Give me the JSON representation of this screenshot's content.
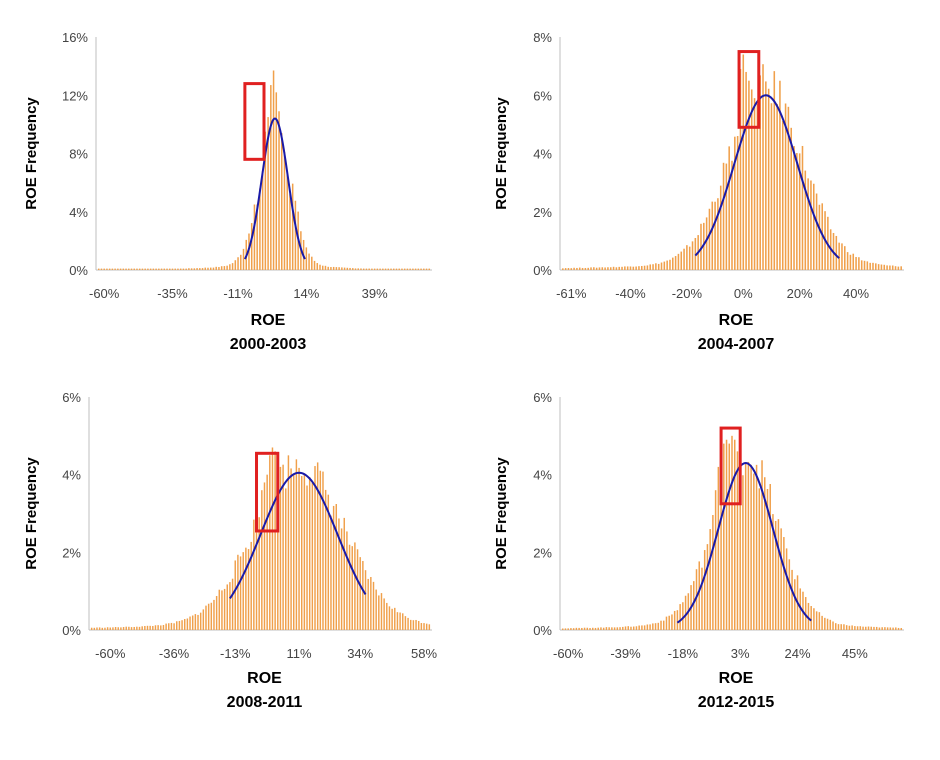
{
  "chart_data": [
    {
      "type": "bar",
      "title": "2000-2003",
      "xlabel": "ROE",
      "ylabel": "ROE Frequency",
      "y_ticks": [
        "0%",
        "4%",
        "8%",
        "12%",
        "16%"
      ],
      "ylim": [
        0,
        16
      ],
      "x_tick_labels": [
        "-60%",
        "-35%",
        "-11%",
        "14%",
        "39%"
      ],
      "x_tick_values": [
        -60,
        -35,
        -11,
        14,
        39
      ],
      "xlim": [
        -63,
        60
      ],
      "bin_width": 1,
      "peak_bins": [
        {
          "x": -4,
          "y": 4.5
        },
        {
          "x": -3,
          "y": 5.6
        },
        {
          "x": -2,
          "y": 6.8
        },
        {
          "x": -1,
          "y": 9.5
        },
        {
          "x": 0,
          "y": 10.5
        },
        {
          "x": 1,
          "y": 12.7
        },
        {
          "x": 2,
          "y": 13.7
        },
        {
          "x": 3,
          "y": 12.2
        },
        {
          "x": 4,
          "y": 10.9
        },
        {
          "x": 5,
          "y": 9.4
        },
        {
          "x": 6,
          "y": 8.1
        },
        {
          "x": 7,
          "y": 6.6
        },
        {
          "x": 8,
          "y": 5.2
        }
      ],
      "bar_color": "#f0a04b",
      "normal_fit": {
        "mean": 2.5,
        "sd": 4.8,
        "peak": 10.4,
        "x_range": [
          -8.5,
          13.5
        ],
        "color": "#1a1aa8"
      },
      "highlight_box": {
        "x_range": [
          -8.5,
          -1.5
        ],
        "y_range": [
          7.6,
          12.8
        ],
        "color": "#e02020"
      }
    },
    {
      "type": "bar",
      "title": "2004-2007",
      "xlabel": "ROE",
      "ylabel": "ROE Frequency",
      "y_ticks": [
        "0%",
        "2%",
        "4%",
        "6%",
        "8%"
      ],
      "ylim": [
        0,
        8
      ],
      "x_tick_labels": [
        "-61%",
        "-40%",
        "-20%",
        "0%",
        "20%",
        "40%"
      ],
      "x_tick_values": [
        -61,
        -40,
        -20,
        0,
        20,
        40
      ],
      "xlim": [
        -65,
        57
      ],
      "bin_width": 1,
      "peak_bins": [
        {
          "x": -2,
          "y": 4.6
        },
        {
          "x": -1,
          "y": 6.9
        },
        {
          "x": 0,
          "y": 7.4
        },
        {
          "x": 1,
          "y": 6.8
        },
        {
          "x": 2,
          "y": 6.5
        },
        {
          "x": 3,
          "y": 6.2
        },
        {
          "x": 4,
          "y": 5.9
        },
        {
          "x": 5,
          "y": 5.7
        }
      ],
      "bar_color": "#f0a04b",
      "normal_fit": {
        "mean": 8,
        "sd": 11.2,
        "peak": 6.0,
        "x_range": [
          -17,
          34
        ],
        "color": "#1a1aa8"
      },
      "highlight_box": {
        "x_range": [
          -1.5,
          5.5
        ],
        "y_range": [
          4.9,
          7.5
        ],
        "color": "#e02020"
      }
    },
    {
      "type": "bar",
      "title": "2008-2011",
      "xlabel": "ROE",
      "ylabel": "ROE Frequency",
      "y_ticks": [
        "0%",
        "2%",
        "4%",
        "6%"
      ],
      "ylim": [
        0,
        6
      ],
      "x_tick_labels": [
        "-60%",
        "-36%",
        "-13%",
        "11%",
        "34%",
        "58%"
      ],
      "x_tick_values": [
        -60,
        -36,
        -13,
        11,
        34,
        58
      ],
      "xlim": [
        -68,
        61
      ],
      "bin_width": 1,
      "peak_bins": [
        {
          "x": -3,
          "y": 3.6
        },
        {
          "x": -2,
          "y": 3.8
        },
        {
          "x": -1,
          "y": 4.0
        },
        {
          "x": 0,
          "y": 4.5
        },
        {
          "x": 1,
          "y": 4.7
        },
        {
          "x": 2,
          "y": 4.6
        },
        {
          "x": 3,
          "y": 4.4
        },
        {
          "x": 4,
          "y": 4.2
        }
      ],
      "bar_color": "#f0a04b",
      "normal_fit": {
        "mean": 11,
        "sd": 14.5,
        "peak": 4.05,
        "x_range": [
          -15,
          36
        ],
        "color": "#1a1aa8"
      },
      "highlight_box": {
        "x_range": [
          -5,
          3
        ],
        "y_range": [
          2.55,
          4.55
        ],
        "color": "#e02020"
      }
    },
    {
      "type": "bar",
      "title": "2012-2015",
      "xlabel": "ROE",
      "ylabel": "ROE Frequency",
      "y_ticks": [
        "0%",
        "2%",
        "4%",
        "6%"
      ],
      "ylim": [
        0,
        6
      ],
      "x_tick_labels": [
        "-60%",
        "-39%",
        "-18%",
        "3%",
        "24%",
        "45%"
      ],
      "x_tick_values": [
        -60,
        -39,
        -18,
        3,
        24,
        45
      ],
      "xlim": [
        -63,
        63
      ],
      "bin_width": 1,
      "peak_bins": [
        {
          "x": -6,
          "y": 3.6
        },
        {
          "x": -5,
          "y": 4.2
        },
        {
          "x": -4,
          "y": 4.5
        },
        {
          "x": -3,
          "y": 4.8
        },
        {
          "x": -2,
          "y": 4.9
        },
        {
          "x": -1,
          "y": 4.8
        },
        {
          "x": 0,
          "y": 5.0
        },
        {
          "x": 1,
          "y": 4.9
        },
        {
          "x": 2,
          "y": 4.6
        }
      ],
      "bar_color": "#f0a04b",
      "normal_fit": {
        "mean": 5,
        "sd": 10,
        "peak": 4.3,
        "x_range": [
          -20,
          29
        ],
        "color": "#1a1aa8"
      },
      "highlight_box": {
        "x_range": [
          -4,
          3
        ],
        "y_range": [
          3.25,
          5.2
        ],
        "color": "#e02020"
      }
    }
  ]
}
